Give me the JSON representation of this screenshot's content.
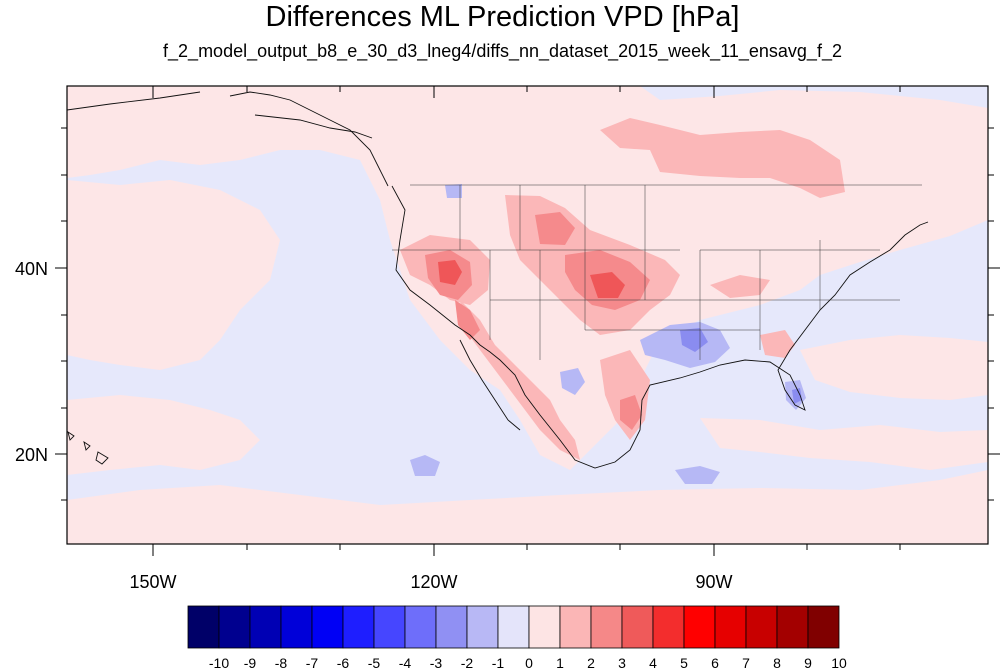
{
  "title": "Differences ML Prediction VPD [hPa]",
  "subtitle": "f_2_model_output_b8_e_30_d3_lneg4/diffs_nn_dataset_2015_week_11_ensavg_f_2",
  "map": {
    "lon_labels": [
      "150W",
      "120W",
      "90W"
    ],
    "lat_labels": [
      "40N",
      "20N"
    ],
    "colors": {
      "background_neg_small": "#e6e8fb",
      "background_pos_small": "#fde6e7",
      "pos_1_2": "#fbb7b8",
      "pos_2_3": "#f58a8c",
      "pos_3_4": "#ef5658",
      "neg_2_1": "#b6b8f5",
      "neg_3_2": "#8a8cf0",
      "coast": "#111111"
    }
  },
  "colorbar": {
    "labels": [
      "-10",
      "-9",
      "-8",
      "-7",
      "-6",
      "-5",
      "-4",
      "-3",
      "-2",
      "-1",
      "0",
      "1",
      "2",
      "3",
      "4",
      "5",
      "6",
      "7",
      "8",
      "9",
      "10"
    ],
    "colors": [
      "#000068",
      "#00008f",
      "#0000b4",
      "#0000d9",
      "#0000f5",
      "#1e1eff",
      "#4646ff",
      "#6e6efa",
      "#9090f3",
      "#b8b8f5",
      "#e4e4fa",
      "#fde4e4",
      "#fbb6b6",
      "#f58888",
      "#ef5a5a",
      "#f32d2d",
      "#ff0000",
      "#e60000",
      "#c80000",
      "#a30000",
      "#800000"
    ]
  }
}
